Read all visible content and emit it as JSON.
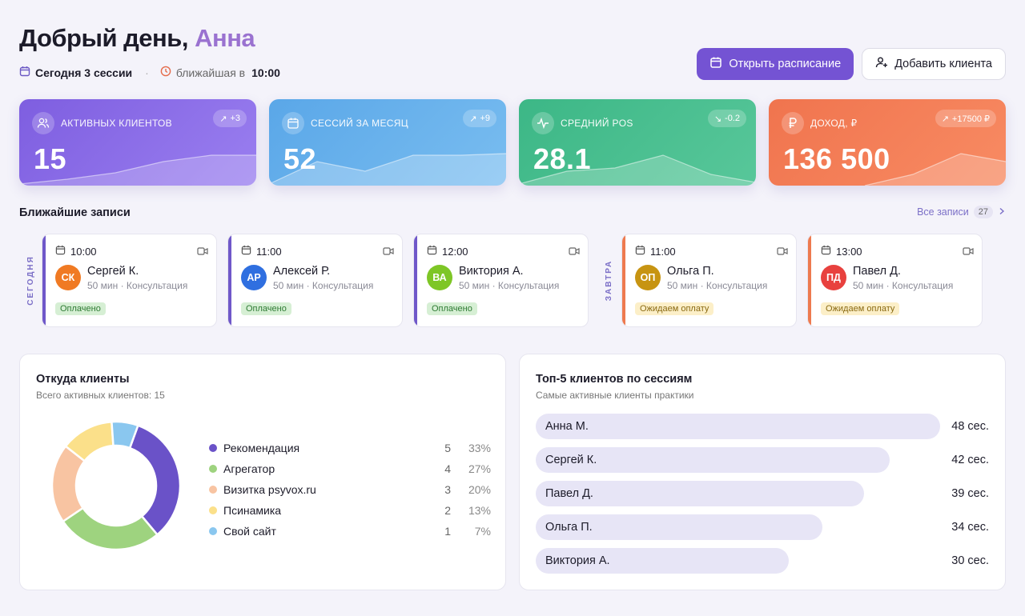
{
  "header": {
    "greeting": "Добрый день,",
    "name": "Анна",
    "today_label": "Сегодня 3 сессии",
    "nearest_label": "ближайшая в",
    "nearest_time": "10:00"
  },
  "actions": {
    "open_schedule": "Открыть расписание",
    "add_client": "Добавить клиента"
  },
  "kpis": [
    {
      "label": "Активных клиентов",
      "value": "15",
      "delta": "+3",
      "trend": "up",
      "icon": "users-icon",
      "color": "#7e5ee0"
    },
    {
      "label": "Сессий за месяц",
      "value": "52",
      "delta": "+9",
      "trend": "up",
      "icon": "calendar-icon",
      "color": "#5aa7e8"
    },
    {
      "label": "Средний POS",
      "value": "28.1",
      "delta": "-0.2",
      "trend": "down",
      "icon": "activity-icon",
      "color": "#3cb786"
    },
    {
      "label": "Доход, ₽",
      "value": "136 500",
      "delta": "+17500 ₽",
      "trend": "up",
      "icon": "ruble-icon",
      "color": "#f0744e"
    }
  ],
  "upcoming": {
    "title": "Ближайшие записи",
    "all_label": "Все записи",
    "all_count": "27",
    "today_label": "СЕГОДНЯ",
    "tomorrow_label": "ЗАВТРА",
    "items": [
      {
        "time": "10:00",
        "initials": "СК",
        "name": "Сергей К.",
        "meta": "50 мин · Консультация",
        "status": "Оплачено",
        "avatar_color": "#f07a23"
      },
      {
        "time": "11:00",
        "initials": "АР",
        "name": "Алексей Р.",
        "meta": "50 мин · Консультация",
        "status": "Оплачено",
        "avatar_color": "#2f6fe0"
      },
      {
        "time": "12:00",
        "initials": "ВА",
        "name": "Виктория А.",
        "meta": "50 мин · Консультация",
        "status": "Оплачено",
        "avatar_color": "#7ec626"
      },
      {
        "time": "11:00",
        "initials": "ОП",
        "name": "Ольга П.",
        "meta": "50 мин · Консультация",
        "status": "Ожидаем оплату",
        "avatar_color": "#c79412"
      },
      {
        "time": "13:00",
        "initials": "ПД",
        "name": "Павел Д.",
        "meta": "50 мин · Консультация",
        "status": "Ожидаем оплату",
        "avatar_color": "#e8413e"
      }
    ]
  },
  "sources": {
    "title": "Откуда клиенты",
    "subtitle": "Всего активных клиентов: 15",
    "chart_data": {
      "type": "pie",
      "categories": [
        "Рекомендация",
        "Агрегатор",
        "Визитка psyvox.ru",
        "Псинамика",
        "Свой сайт"
      ],
      "values": [
        5,
        4,
        3,
        2,
        1
      ],
      "percents": [
        "33%",
        "27%",
        "20%",
        "13%",
        "7%"
      ],
      "colors": [
        "#6a52c8",
        "#9ed37f",
        "#f8c4a2",
        "#fbe08a",
        "#8ac7ef"
      ],
      "start_angle_deg": 20
    }
  },
  "top_clients": {
    "title": "Топ-5 клиентов по сессиям",
    "subtitle": "Самые активные клиенты практики",
    "chart_data": {
      "type": "bar",
      "categories": [
        "Анна М.",
        "Сергей К.",
        "Павел Д.",
        "Ольга П.",
        "Виктория А."
      ],
      "values": [
        48,
        42,
        39,
        34,
        30
      ],
      "value_labels": [
        "48 сес.",
        "42 сес.",
        "39 сес.",
        "34 сес.",
        "30 сес."
      ],
      "xlim": [
        0,
        48
      ]
    }
  }
}
